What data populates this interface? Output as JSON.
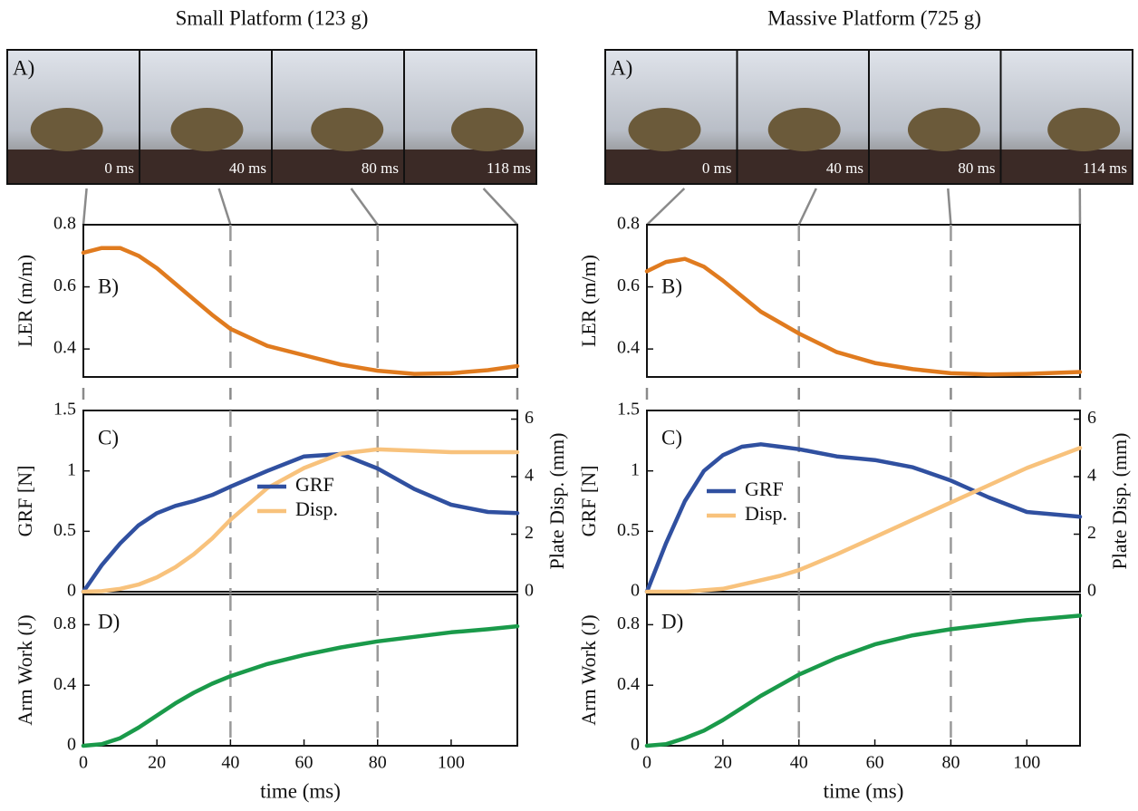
{
  "photo_strips": [
    {
      "title": "Small Platform (123 g)",
      "label": "A)",
      "frames": [
        "0 ms",
        "40 ms",
        "80 ms",
        "118 ms"
      ]
    },
    {
      "title": "Massive Platform (725 g)",
      "label": "A)",
      "frames": [
        "0 ms",
        "40 ms",
        "80 ms",
        "114 ms"
      ]
    }
  ],
  "chart_data": [
    {
      "type": "line",
      "panel_label": "B)",
      "ylabel": "LER (m/m)",
      "color": "#e07b1f",
      "x": [
        0,
        5,
        10,
        15,
        20,
        25,
        30,
        35,
        40,
        50,
        60,
        70,
        80,
        90,
        100,
        110,
        118
      ],
      "values": [
        0.71,
        0.725,
        0.725,
        0.7,
        0.66,
        0.61,
        0.56,
        0.51,
        0.465,
        0.41,
        0.38,
        0.35,
        0.33,
        0.32,
        0.322,
        0.332,
        0.345
      ],
      "xlim": [
        0,
        118
      ],
      "ylim": [
        0.31,
        0.8
      ],
      "yticks": [
        0.4,
        0.6,
        0.8
      ],
      "vlines": [
        40,
        80
      ]
    },
    {
      "type": "line",
      "panel_label": "C)",
      "ylabel": "GRF [N]",
      "y2label": "Plate Disp. (mm)",
      "legend": "center",
      "x": [
        0,
        5,
        10,
        15,
        20,
        25,
        30,
        35,
        40,
        50,
        60,
        70,
        80,
        90,
        100,
        110,
        118
      ],
      "series": [
        {
          "name": "GRF",
          "color": "#3050a0",
          "values": [
            0,
            0.22,
            0.4,
            0.55,
            0.65,
            0.71,
            0.75,
            0.8,
            0.87,
            1.0,
            1.12,
            1.14,
            1.02,
            0.85,
            0.72,
            0.66,
            0.65
          ]
        },
        {
          "name": "Disp.",
          "color": "#f8c27c",
          "axis": "y2",
          "values": [
            0,
            0.02,
            0.1,
            0.25,
            0.5,
            0.85,
            1.3,
            1.85,
            2.5,
            3.6,
            4.3,
            4.8,
            4.95,
            4.9,
            4.85,
            4.85,
            4.85
          ]
        }
      ],
      "xlim": [
        0,
        118
      ],
      "ylim": [
        0,
        1.5
      ],
      "yticks": [
        0,
        0.5,
        1,
        1.5
      ],
      "y2lim": [
        0,
        6.3
      ],
      "y2ticks": [
        0,
        2,
        4,
        6
      ],
      "vlines": [
        40,
        80
      ]
    },
    {
      "type": "line",
      "panel_label": "D)",
      "ylabel": "Arm Work (J)",
      "xlabel": "time (ms)",
      "color": "#1a9a4a",
      "x": [
        0,
        5,
        10,
        15,
        20,
        25,
        30,
        35,
        40,
        50,
        60,
        70,
        80,
        90,
        100,
        110,
        118
      ],
      "values": [
        0,
        0.01,
        0.05,
        0.12,
        0.2,
        0.28,
        0.35,
        0.41,
        0.46,
        0.54,
        0.6,
        0.65,
        0.69,
        0.72,
        0.75,
        0.77,
        0.79
      ],
      "xlim": [
        0,
        118
      ],
      "xticks": [
        0,
        20,
        40,
        60,
        80,
        100
      ],
      "ylim": [
        0,
        1
      ],
      "yticks": [
        0,
        0.4,
        0.8
      ],
      "vlines": [
        40,
        80
      ]
    },
    {
      "type": "line",
      "panel_label": "B)",
      "ylabel": "LER (m/m)",
      "color": "#e07b1f",
      "x": [
        0,
        5,
        10,
        15,
        20,
        25,
        30,
        35,
        40,
        50,
        60,
        70,
        80,
        90,
        100,
        114
      ],
      "values": [
        0.65,
        0.68,
        0.69,
        0.665,
        0.62,
        0.57,
        0.52,
        0.485,
        0.45,
        0.39,
        0.355,
        0.335,
        0.322,
        0.318,
        0.32,
        0.326
      ],
      "xlim": [
        0,
        114
      ],
      "ylim": [
        0.31,
        0.8
      ],
      "yticks": [
        0.4,
        0.6,
        0.8
      ],
      "vlines": [
        40,
        80
      ]
    },
    {
      "type": "line",
      "panel_label": "C)",
      "ylabel": "GRF [N]",
      "y2label": "Plate Disp. (mm)",
      "legend": "center left",
      "x": [
        0,
        5,
        10,
        15,
        20,
        25,
        30,
        35,
        40,
        50,
        60,
        70,
        80,
        90,
        100,
        114
      ],
      "series": [
        {
          "name": "GRF",
          "color": "#3050a0",
          "values": [
            0,
            0.4,
            0.75,
            1.0,
            1.13,
            1.2,
            1.22,
            1.2,
            1.18,
            1.12,
            1.09,
            1.03,
            0.92,
            0.78,
            0.66,
            0.62
          ]
        },
        {
          "name": "Disp.",
          "color": "#f8c27c",
          "axis": "y2",
          "values": [
            0,
            0,
            0,
            0.05,
            0.1,
            0.25,
            0.4,
            0.55,
            0.75,
            1.3,
            1.9,
            2.5,
            3.1,
            3.7,
            4.3,
            5.0
          ]
        }
      ],
      "xlim": [
        0,
        114
      ],
      "ylim": [
        0,
        1.5
      ],
      "yticks": [
        0,
        0.5,
        1,
        1.5
      ],
      "y2lim": [
        0,
        6.3
      ],
      "y2ticks": [
        0,
        2,
        4,
        6
      ],
      "vlines": [
        40,
        80
      ]
    },
    {
      "type": "line",
      "panel_label": "D)",
      "ylabel": "Arm Work (J)",
      "xlabel": "time (ms)",
      "color": "#1a9a4a",
      "x": [
        0,
        5,
        10,
        15,
        20,
        25,
        30,
        35,
        40,
        50,
        60,
        70,
        80,
        90,
        100,
        114
      ],
      "values": [
        0,
        0.01,
        0.05,
        0.1,
        0.17,
        0.25,
        0.33,
        0.4,
        0.47,
        0.58,
        0.67,
        0.73,
        0.77,
        0.8,
        0.83,
        0.86
      ],
      "xlim": [
        0,
        114
      ],
      "xticks": [
        0,
        20,
        40,
        60,
        80,
        100
      ],
      "ylim": [
        0,
        1
      ],
      "yticks": [
        0,
        0.4,
        0.8
      ],
      "vlines": [
        40,
        80
      ]
    }
  ]
}
